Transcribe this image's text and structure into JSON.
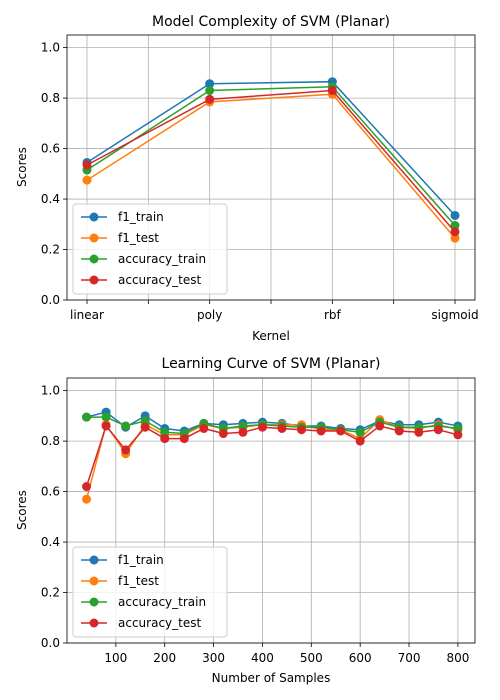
{
  "chart_data": [
    {
      "type": "line",
      "title": "Model Complexity of SVM (Planar)",
      "xlabel": "Kernel",
      "ylabel": "Scores",
      "categories": [
        "linear",
        "poly",
        "rbf",
        "sigmoid"
      ],
      "ylim": [
        0.0,
        1.05
      ],
      "yticks": [
        "0.0",
        "0.2",
        "0.4",
        "0.6",
        "0.8",
        "1.0"
      ],
      "grid": true,
      "legend_position": "lower-left",
      "series": [
        {
          "name": "f1_train",
          "color": "#1f77b4",
          "values": [
            0.545,
            0.857,
            0.865,
            0.335
          ]
        },
        {
          "name": "f1_test",
          "color": "#ff7f0e",
          "values": [
            0.475,
            0.785,
            0.815,
            0.245
          ]
        },
        {
          "name": "accuracy_train",
          "color": "#2ca02c",
          "values": [
            0.515,
            0.83,
            0.845,
            0.295
          ]
        },
        {
          "name": "accuracy_test",
          "color": "#d62728",
          "values": [
            0.535,
            0.795,
            0.83,
            0.27
          ]
        }
      ]
    },
    {
      "type": "line",
      "title": "Learning Curve of SVM (Planar)",
      "xlabel": "Number of Samples",
      "ylabel": "Scores",
      "x": [
        40,
        80,
        120,
        160,
        200,
        240,
        280,
        320,
        360,
        400,
        440,
        480,
        520,
        560,
        600,
        640,
        680,
        720,
        760,
        800
      ],
      "xlim": [
        0,
        835
      ],
      "xticks": [
        "100",
        "200",
        "300",
        "400",
        "500",
        "600",
        "700",
        "800"
      ],
      "ylim": [
        0.0,
        1.05
      ],
      "yticks": [
        "0.0",
        "0.2",
        "0.4",
        "0.6",
        "0.8",
        "1.0"
      ],
      "grid": true,
      "legend_position": "lower-left",
      "series": [
        {
          "name": "f1_train",
          "color": "#1f77b4",
          "values": [
            0.895,
            0.915,
            0.855,
            0.9,
            0.85,
            0.84,
            0.87,
            0.865,
            0.87,
            0.875,
            0.87,
            0.86,
            0.86,
            0.85,
            0.845,
            0.88,
            0.865,
            0.865,
            0.875,
            0.86
          ]
        },
        {
          "name": "f1_test",
          "color": "#ff7f0e",
          "values": [
            0.57,
            0.865,
            0.75,
            0.865,
            0.825,
            0.825,
            0.865,
            0.85,
            0.855,
            0.865,
            0.865,
            0.865,
            0.845,
            0.845,
            0.81,
            0.885,
            0.855,
            0.85,
            0.865,
            0.845
          ]
        },
        {
          "name": "accuracy_train",
          "color": "#2ca02c",
          "values": [
            0.895,
            0.895,
            0.86,
            0.88,
            0.835,
            0.83,
            0.87,
            0.85,
            0.86,
            0.865,
            0.86,
            0.855,
            0.855,
            0.845,
            0.835,
            0.875,
            0.855,
            0.855,
            0.86,
            0.85
          ]
        },
        {
          "name": "accuracy_test",
          "color": "#d62728",
          "values": [
            0.62,
            0.86,
            0.765,
            0.855,
            0.81,
            0.81,
            0.85,
            0.83,
            0.835,
            0.855,
            0.85,
            0.845,
            0.84,
            0.84,
            0.8,
            0.86,
            0.84,
            0.835,
            0.845,
            0.825
          ]
        }
      ]
    }
  ]
}
